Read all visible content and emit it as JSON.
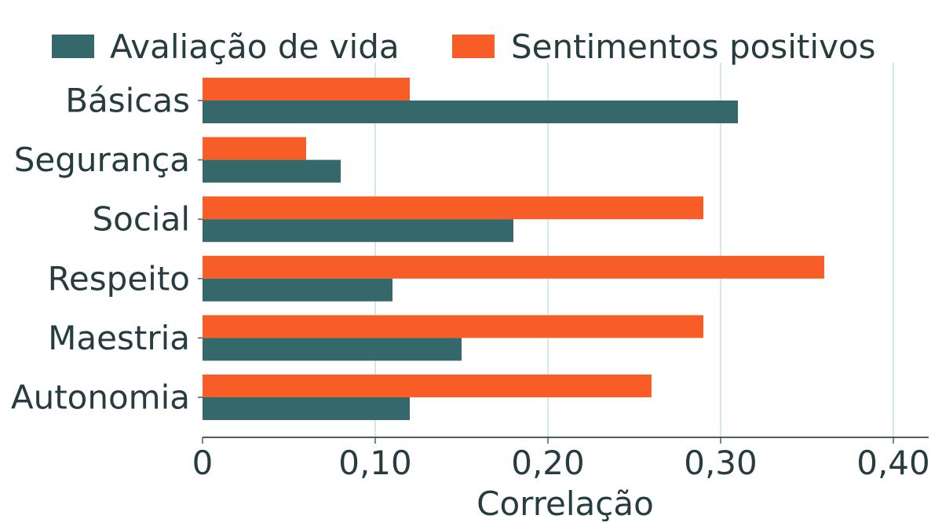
{
  "chart_data": {
    "type": "bar",
    "orientation": "horizontal",
    "categories": [
      "Básicas",
      "Segurança",
      "Social",
      "Respeito",
      "Maestria",
      "Autonomia"
    ],
    "series": [
      {
        "name": "Avaliação de vida",
        "color": "#35686a",
        "values": [
          0.31,
          0.08,
          0.18,
          0.11,
          0.15,
          0.12
        ]
      },
      {
        "name": "Sentimentos positivos",
        "color": "#f95d27",
        "values": [
          0.12,
          0.06,
          0.29,
          0.36,
          0.29,
          0.26
        ]
      }
    ],
    "xlabel": "Correlação",
    "xlim": [
      0,
      0.42
    ],
    "xticks": [
      0,
      0.1,
      0.2,
      0.3,
      0.4
    ],
    "xtick_labels": [
      "0",
      "0,10",
      "0,20",
      "0,30",
      "0,40"
    ],
    "grid": "vertical",
    "legend_position": "top"
  },
  "colors": {
    "text": "#263c3f",
    "grid": "#d4e8e6",
    "axis": "#4b5f60"
  }
}
